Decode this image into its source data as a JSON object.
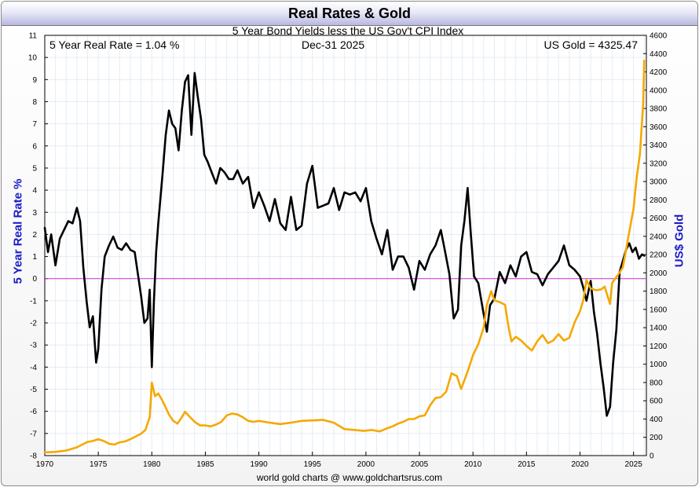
{
  "header": {
    "title": "Real Rates & Gold",
    "subtitle": "5 Year Bond Yields less the US Gov't CPI Index"
  },
  "annotations": {
    "left": "5 Year Real Rate = 1.04 %",
    "center": "Dec-31  2025",
    "right": "US Gold = 4325.47"
  },
  "footer": "world gold charts @ www.goldchartsrus.com",
  "colors": {
    "real_rate": "#000000",
    "gold": "#f5a800",
    "zero_line": "#cc33cc",
    "axis_label": "#1a1ac8",
    "grid": "#e4ecf4"
  },
  "chart_data": {
    "type": "line",
    "title": "Real Rates & Gold",
    "subtitle": "5 Year Bond Yields less the US Gov't CPI Index",
    "xlim": [
      1970,
      2026.2
    ],
    "x_ticks": [
      1970,
      1975,
      1980,
      1985,
      1990,
      1995,
      2000,
      2005,
      2010,
      2015,
      2020,
      2025
    ],
    "y_left": {
      "label": "5 Year Real Rate %",
      "range": [
        -8,
        11
      ],
      "ticks": [
        -8,
        -7,
        -6,
        -5,
        -4,
        -3,
        -2,
        -1,
        0,
        1,
        2,
        3,
        4,
        5,
        6,
        7,
        8,
        9,
        10,
        11
      ]
    },
    "y_right": {
      "label": "US$ Gold",
      "range": [
        0,
        4600
      ],
      "ticks": [
        0,
        200,
        400,
        600,
        800,
        1000,
        1200,
        1400,
        1600,
        1800,
        2000,
        2200,
        2400,
        2600,
        2800,
        3000,
        3200,
        3400,
        3600,
        3800,
        4000,
        4200,
        4400,
        4600
      ]
    },
    "reference_line": {
      "axis": "left",
      "value": 0
    },
    "series": [
      {
        "name": "5 Year Real Rate",
        "axis": "left",
        "x": [
          1970.0,
          1970.3,
          1970.6,
          1971.0,
          1971.4,
          1971.8,
          1972.2,
          1972.6,
          1973.0,
          1973.3,
          1973.6,
          1973.9,
          1974.2,
          1974.5,
          1974.8,
          1975.0,
          1975.3,
          1975.6,
          1976.0,
          1976.4,
          1976.8,
          1977.2,
          1977.6,
          1978.0,
          1978.4,
          1978.7,
          1979.0,
          1979.3,
          1979.6,
          1979.8,
          1980.0,
          1980.2,
          1980.4,
          1980.6,
          1980.8,
          1981.0,
          1981.3,
          1981.6,
          1981.9,
          1982.2,
          1982.5,
          1982.8,
          1983.1,
          1983.4,
          1983.7,
          1984.0,
          1984.3,
          1984.6,
          1984.9,
          1985.2,
          1985.6,
          1986.0,
          1986.4,
          1986.8,
          1987.2,
          1987.6,
          1988.0,
          1988.5,
          1989.0,
          1989.5,
          1990.0,
          1990.5,
          1991.0,
          1991.5,
          1992.0,
          1992.5,
          1993.0,
          1993.5,
          1994.0,
          1994.5,
          1995.0,
          1995.5,
          1996.0,
          1996.5,
          1997.0,
          1997.5,
          1998.0,
          1998.5,
          1999.0,
          1999.5,
          2000.0,
          2000.5,
          2001.0,
          2001.5,
          2002.0,
          2002.5,
          2003.0,
          2003.5,
          2004.0,
          2004.5,
          2005.0,
          2005.5,
          2006.0,
          2006.5,
          2007.0,
          2007.4,
          2007.8,
          2008.2,
          2008.6,
          2008.9,
          2009.2,
          2009.5,
          2009.8,
          2010.1,
          2010.5,
          2011.0,
          2011.3,
          2011.6,
          2012.0,
          2012.5,
          2013.0,
          2013.5,
          2014.0,
          2014.5,
          2015.0,
          2015.5,
          2016.0,
          2016.5,
          2017.0,
          2017.5,
          2018.0,
          2018.5,
          2019.0,
          2019.5,
          2020.0,
          2020.3,
          2020.6,
          2021.0,
          2021.3,
          2021.6,
          2021.9,
          2022.2,
          2022.5,
          2022.8,
          2023.1,
          2023.4,
          2023.7,
          2024.0,
          2024.3,
          2024.6,
          2024.9,
          2025.2,
          2025.5,
          2025.8,
          2026.0
        ],
        "y": [
          2.3,
          1.2,
          2.0,
          0.6,
          1.8,
          2.2,
          2.6,
          2.5,
          3.2,
          2.6,
          0.5,
          -1.0,
          -2.2,
          -1.7,
          -3.8,
          -3.2,
          -0.5,
          1.0,
          1.5,
          1.9,
          1.4,
          1.3,
          1.6,
          1.3,
          1.2,
          0.2,
          -0.8,
          -2.0,
          -1.8,
          -0.5,
          -4.0,
          -1.0,
          1.2,
          2.5,
          3.6,
          4.7,
          6.5,
          7.6,
          7.0,
          6.8,
          5.8,
          7.6,
          8.9,
          9.2,
          6.5,
          9.3,
          8.2,
          7.2,
          5.6,
          5.3,
          4.8,
          4.3,
          5.0,
          4.8,
          4.5,
          4.5,
          4.9,
          4.3,
          4.6,
          3.2,
          3.9,
          3.3,
          2.6,
          3.6,
          2.5,
          2.2,
          3.7,
          2.2,
          2.4,
          4.3,
          5.1,
          3.2,
          3.3,
          3.4,
          4.1,
          3.1,
          3.9,
          3.8,
          3.9,
          3.5,
          4.1,
          2.6,
          1.8,
          1.1,
          2.2,
          0.4,
          1.0,
          1.0,
          0.5,
          -0.5,
          0.8,
          0.4,
          1.1,
          1.5,
          2.2,
          1.2,
          0.2,
          -1.8,
          -1.4,
          1.5,
          2.6,
          4.1,
          2.0,
          0.1,
          -0.2,
          -1.6,
          -2.4,
          -1.2,
          -0.9,
          0.3,
          -0.2,
          0.6,
          0.1,
          1.0,
          1.2,
          0.3,
          0.2,
          -0.3,
          0.2,
          0.5,
          0.8,
          1.5,
          0.6,
          0.4,
          0.1,
          -0.4,
          -1.0,
          -0.1,
          -1.5,
          -2.5,
          -3.8,
          -4.9,
          -6.2,
          -5.8,
          -3.8,
          -2.3,
          0.3,
          0.8,
          1.3,
          1.6,
          1.2,
          1.4,
          0.9,
          1.1,
          1.04
        ]
      },
      {
        "name": "US Gold",
        "axis": "right",
        "x": [
          1970.0,
          1971.0,
          1972.0,
          1973.0,
          1973.5,
          1974.0,
          1974.5,
          1975.0,
          1975.5,
          1976.0,
          1976.5,
          1977.0,
          1977.5,
          1978.0,
          1978.5,
          1979.0,
          1979.4,
          1979.8,
          1980.0,
          1980.3,
          1980.6,
          1980.9,
          1981.2,
          1981.6,
          1982.0,
          1982.4,
          1982.8,
          1983.1,
          1983.5,
          1984.0,
          1984.5,
          1985.0,
          1985.5,
          1986.0,
          1986.5,
          1987.0,
          1987.5,
          1988.0,
          1988.5,
          1989.0,
          1989.5,
          1990.0,
          1991.0,
          1992.0,
          1993.0,
          1994.0,
          1995.0,
          1996.0,
          1997.0,
          1998.0,
          1999.0,
          1999.8,
          2000.5,
          2001.3,
          2002.0,
          2002.5,
          2003.0,
          2003.5,
          2004.0,
          2004.5,
          2005.0,
          2005.5,
          2006.0,
          2006.5,
          2007.0,
          2007.5,
          2008.0,
          2008.5,
          2008.9,
          2009.5,
          2010.0,
          2010.5,
          2011.0,
          2011.3,
          2011.7,
          2012.0,
          2012.5,
          2013.0,
          2013.3,
          2013.6,
          2014.0,
          2014.5,
          2015.0,
          2015.5,
          2016.0,
          2016.5,
          2017.0,
          2017.5,
          2018.0,
          2018.5,
          2019.0,
          2019.5,
          2020.0,
          2020.3,
          2020.6,
          2021.0,
          2021.5,
          2022.0,
          2022.3,
          2022.8,
          2023.0,
          2023.5,
          2024.0,
          2024.3,
          2024.6,
          2025.0,
          2025.3,
          2025.6,
          2025.9,
          2026.0
        ],
        "y": [
          35,
          40,
          55,
          90,
          120,
          150,
          160,
          180,
          160,
          130,
          120,
          145,
          155,
          180,
          210,
          240,
          280,
          420,
          800,
          650,
          680,
          620,
          550,
          450,
          380,
          350,
          420,
          480,
          430,
          370,
          330,
          330,
          320,
          340,
          370,
          440,
          460,
          450,
          420,
          380,
          370,
          380,
          360,
          345,
          360,
          380,
          385,
          390,
          360,
          290,
          280,
          270,
          280,
          265,
          300,
          320,
          350,
          370,
          400,
          400,
          430,
          440,
          550,
          630,
          640,
          700,
          900,
          870,
          730,
          920,
          1100,
          1220,
          1400,
          1650,
          1800,
          1700,
          1680,
          1650,
          1420,
          1250,
          1300,
          1260,
          1200,
          1150,
          1250,
          1320,
          1230,
          1260,
          1330,
          1260,
          1290,
          1460,
          1580,
          1700,
          1920,
          1830,
          1810,
          1820,
          1850,
          1660,
          1890,
          1970,
          2060,
          2250,
          2450,
          2700,
          3050,
          3300,
          3850,
          4325
        ]
      }
    ]
  }
}
